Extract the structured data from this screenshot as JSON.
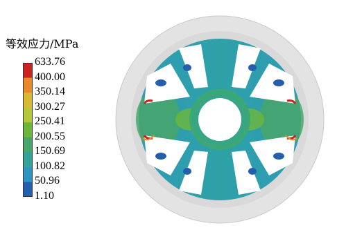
{
  "legend": {
    "title": "等效应力/MPa",
    "levels": [
      "633.76",
      "400.00",
      "350.14",
      "300.27",
      "250.41",
      "200.55",
      "150.69",
      "100.82",
      "50.96",
      "1.10"
    ],
    "colors": [
      "#cc2222",
      "#e98a2a",
      "#d8b933",
      "#b5c83b",
      "#6eb63a",
      "#49a66a",
      "#35a39a",
      "#2f94c2",
      "#245fae"
    ]
  },
  "model": {
    "ring_color": "#dcdcdc",
    "spoke_count": 6
  }
}
